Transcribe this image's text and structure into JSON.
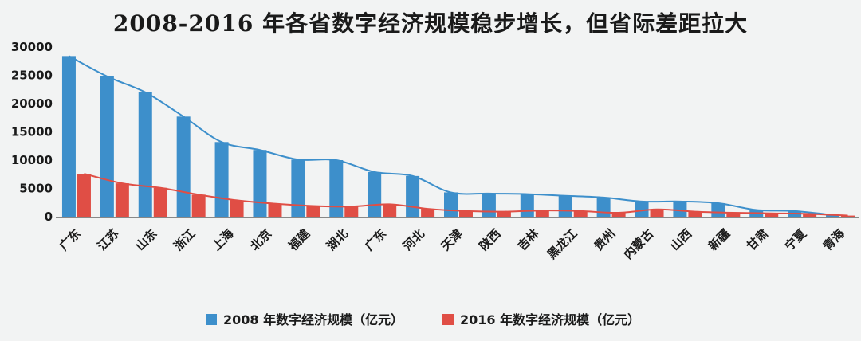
{
  "chart_data": {
    "type": "bar",
    "title": "2008-2016 年各省数字经济规模稳步增长，但省际差距拉大",
    "xlabel": "",
    "ylabel": "",
    "ylim": [
      0,
      30000
    ],
    "yticks": [
      0,
      5000,
      10000,
      15000,
      20000,
      25000,
      30000
    ],
    "grid": false,
    "legend_position": "bottom",
    "categories": [
      "广东",
      "江苏",
      "山东",
      "浙江",
      "上海",
      "北京",
      "福建",
      "湖北",
      "广东",
      "河北",
      "天津",
      "陕西",
      "吉林",
      "黑龙江",
      "贵州",
      "内蒙古",
      "山西",
      "新疆",
      "甘肃",
      "宁夏",
      "青海"
    ],
    "series": [
      {
        "name": "2008 年数字经济规模（亿元）",
        "color": "#3d8fcb",
        "values": [
          28400,
          24800,
          22000,
          17700,
          13200,
          11800,
          10100,
          10000,
          7900,
          7200,
          4300,
          4100,
          4000,
          3700,
          3400,
          2700,
          2700,
          2400,
          1200,
          1000,
          300
        ]
      },
      {
        "name": "2016 年数字经济规模（亿元）",
        "color": "#e04e45",
        "values": [
          7600,
          5900,
          5100,
          3900,
          2900,
          2300,
          1900,
          1800,
          2200,
          1400,
          1000,
          900,
          1100,
          1000,
          700,
          1300,
          900,
          700,
          600,
          500,
          200
        ]
      }
    ],
    "trend_lines": true
  }
}
